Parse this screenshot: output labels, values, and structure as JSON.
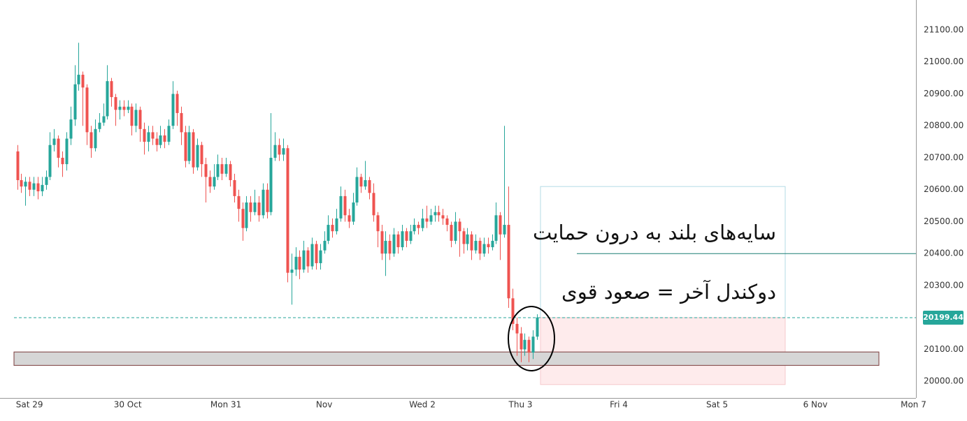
{
  "chart_data": {
    "type": "candlestick",
    "x": [
      -3,
      -2,
      -1,
      0,
      1,
      2,
      3,
      4,
      5,
      6,
      7,
      8,
      9,
      10,
      11,
      12,
      13,
      14,
      15,
      16,
      17,
      18,
      19,
      20,
      21,
      22,
      23,
      24,
      25,
      26,
      27,
      28,
      29,
      30,
      31,
      32,
      33,
      34,
      35,
      36,
      37,
      38,
      39,
      40,
      41,
      42,
      43,
      44,
      45,
      46,
      47,
      48,
      49,
      50,
      51,
      52,
      53,
      54,
      55,
      56,
      57,
      58,
      59,
      60,
      61,
      62,
      63,
      64,
      65,
      66,
      67,
      68,
      69,
      70,
      71,
      72,
      73,
      74,
      75,
      76,
      77,
      78,
      79,
      80,
      81,
      82,
      83,
      84,
      85,
      86,
      87,
      88,
      89,
      90,
      91,
      92,
      93,
      94,
      95,
      96,
      97,
      98,
      99,
      100,
      101,
      102,
      103,
      104,
      105,
      106,
      107,
      108,
      109,
      110,
      111,
      112,
      113,
      114,
      115,
      116,
      117,
      118,
      119,
      120,
      121,
      122,
      123,
      124
    ],
    "open": [
      20720,
      20630,
      20610,
      20625,
      20600,
      20620,
      20595,
      20615,
      20640,
      20740,
      20760,
      20700,
      20680,
      20760,
      20820,
      20930,
      20960,
      20920,
      20780,
      20730,
      20790,
      20810,
      20830,
      20940,
      20890,
      20850,
      20860,
      20850,
      20860,
      20800,
      20850,
      20790,
      20750,
      20780,
      20760,
      20740,
      20770,
      20750,
      20800,
      20900,
      20840,
      20780,
      20690,
      20780,
      20670,
      20740,
      20680,
      20640,
      20610,
      20640,
      20680,
      20650,
      20680,
      20630,
      20580,
      20540,
      20480,
      20560,
      20530,
      20560,
      20520,
      20600,
      20530,
      20700,
      20740,
      20710,
      20730,
      20340,
      20350,
      20390,
      20350,
      20410,
      20360,
      20430,
      20370,
      20410,
      20440,
      20490,
      20470,
      20510,
      20580,
      20520,
      20500,
      20560,
      20640,
      20610,
      20630,
      20590,
      20520,
      20470,
      20400,
      20440,
      20400,
      20460,
      20420,
      20470,
      20440,
      20470,
      20490,
      20480,
      20510,
      20500,
      20520,
      20530,
      20520,
      20510,
      20490,
      20440,
      20500,
      20470,
      20430,
      20460,
      20410,
      20440,
      20400,
      20430,
      20420,
      20440,
      20520,
      20460,
      20490,
      20260,
      20180,
      20150,
      20100,
      20130,
      20090,
      20140
    ],
    "high": [
      20740,
      20650,
      20640,
      20640,
      20640,
      20640,
      20640,
      20660,
      20780,
      20790,
      20770,
      20720,
      20780,
      20860,
      20990,
      21060,
      20970,
      20930,
      20800,
      20820,
      20840,
      20870,
      20990,
      20950,
      20900,
      20880,
      20880,
      20880,
      20870,
      20870,
      20860,
      20810,
      20800,
      20800,
      20780,
      20800,
      20790,
      20820,
      20940,
      20910,
      20860,
      20800,
      20800,
      20790,
      20760,
      20750,
      20700,
      20660,
      20680,
      20710,
      20700,
      20700,
      20690,
      20650,
      20600,
      20560,
      20580,
      20580,
      20600,
      20580,
      20620,
      20620,
      20840,
      20780,
      20760,
      20760,
      20740,
      20400,
      20420,
      20410,
      20440,
      20420,
      20450,
      20440,
      20430,
      20470,
      20520,
      20510,
      20540,
      20610,
      20600,
      20540,
      20590,
      20670,
      20650,
      20690,
      20640,
      20620,
      20530,
      20490,
      20470,
      20460,
      20480,
      20470,
      20490,
      20480,
      20490,
      20510,
      20500,
      20540,
      20550,
      20540,
      20550,
      20550,
      20540,
      20520,
      20500,
      20530,
      20510,
      20480,
      20480,
      20470,
      20460,
      20450,
      20450,
      20450,
      20460,
      20560,
      20530,
      20800,
      20610,
      20290,
      20200,
      20170,
      20150,
      20140,
      20160,
      20210
    ],
    "low": [
      20600,
      20590,
      20550,
      20580,
      20580,
      20570,
      20580,
      20600,
      20630,
      20720,
      20670,
      20640,
      20660,
      20740,
      20800,
      20910,
      20800,
      20740,
      20700,
      20720,
      20780,
      20800,
      20820,
      20860,
      20800,
      20820,
      20830,
      20840,
      20770,
      20780,
      20750,
      20710,
      20720,
      20740,
      20720,
      20730,
      20730,
      20740,
      20790,
      20800,
      20740,
      20670,
      20680,
      20650,
      20660,
      20640,
      20560,
      20590,
      20600,
      20630,
      20630,
      20640,
      20610,
      20560,
      20500,
      20440,
      20470,
      20500,
      20520,
      20500,
      20510,
      20510,
      20520,
      20690,
      20690,
      20690,
      20310,
      20240,
      20330,
      20320,
      20340,
      20340,
      20350,
      20350,
      20350,
      20400,
      20430,
      20450,
      20460,
      20500,
      20500,
      20480,
      20490,
      20550,
      20590,
      20600,
      20570,
      20500,
      20420,
      20380,
      20330,
      20380,
      20390,
      20400,
      20410,
      20420,
      20430,
      20460,
      20460,
      20470,
      20480,
      20490,
      20500,
      20500,
      20490,
      20470,
      20420,
      20430,
      20390,
      20400,
      20410,
      20380,
      20400,
      20380,
      20390,
      20400,
      20410,
      20430,
      20380,
      20450,
      20230,
      20160,
      20080,
      20060,
      20080,
      20060,
      20070,
      20130
    ],
    "close": [
      20630,
      20610,
      20625,
      20600,
      20620,
      20595,
      20615,
      20640,
      20740,
      20760,
      20700,
      20680,
      20760,
      20820,
      20930,
      20960,
      20920,
      20780,
      20730,
      20790,
      20810,
      20830,
      20940,
      20890,
      20850,
      20860,
      20850,
      20860,
      20800,
      20850,
      20790,
      20750,
      20780,
      20760,
      20740,
      20770,
      20750,
      20800,
      20900,
      20840,
      20780,
      20690,
      20780,
      20670,
      20740,
      20680,
      20640,
      20610,
      20640,
      20680,
      20650,
      20680,
      20630,
      20580,
      20540,
      20480,
      20560,
      20530,
      20560,
      20520,
      20600,
      20530,
      20700,
      20740,
      20710,
      20730,
      20340,
      20350,
      20390,
      20350,
      20410,
      20360,
      20430,
      20370,
      20410,
      20440,
      20490,
      20470,
      20510,
      20580,
      20520,
      20500,
      20560,
      20640,
      20610,
      20630,
      20590,
      20520,
      20470,
      20400,
      20440,
      20400,
      20460,
      20420,
      20470,
      20440,
      20470,
      20490,
      20480,
      20510,
      20500,
      20520,
      20530,
      20520,
      20510,
      20490,
      20440,
      20500,
      20470,
      20430,
      20460,
      20410,
      20440,
      20400,
      20430,
      20420,
      20440,
      20520,
      20460,
      20490,
      20260,
      20180,
      20150,
      20100,
      20130,
      20090,
      20140,
      20200
    ],
    "up_color": "#26a69a",
    "down_color": "#ef5350",
    "xlim": [
      -7.2,
      216.6
    ],
    "xticks": [
      {
        "value": 0,
        "label": "Sat 29"
      },
      {
        "value": 24,
        "label": "30 Oct"
      },
      {
        "value": 48,
        "label": "Mon 31"
      },
      {
        "value": 72,
        "label": "Nov"
      },
      {
        "value": 96,
        "label": "Wed 2"
      },
      {
        "value": 120,
        "label": "Thu 3"
      },
      {
        "value": 144,
        "label": "Fri 4"
      },
      {
        "value": 168,
        "label": "Sat 5"
      },
      {
        "value": 192,
        "label": "6 Nov"
      },
      {
        "value": 216,
        "label": "Mon 7"
      }
    ],
    "ylim": [
      19948,
      21194
    ],
    "yticks": [
      {
        "value": 20000,
        "label": "20000.00"
      },
      {
        "value": 20100,
        "label": "20100.00"
      },
      {
        "value": 20200,
        "label": "20200.00"
      },
      {
        "value": 20300,
        "label": "20300.00"
      },
      {
        "value": 20400,
        "label": "20400.00"
      },
      {
        "value": 20500,
        "label": "20500.00"
      },
      {
        "value": 20600,
        "label": "20600.00"
      },
      {
        "value": 20700,
        "label": "20700.00"
      },
      {
        "value": 20800,
        "label": "20800.00"
      },
      {
        "value": 20900,
        "label": "20900.00"
      },
      {
        "value": 21000,
        "label": "21000.00"
      },
      {
        "value": 21100,
        "label": "21100.00"
      }
    ],
    "last_price": 20199.44,
    "support_zone": {
      "low": 20050,
      "high": 20092
    },
    "position": {
      "top": 20610,
      "entry": 20199.44,
      "bottom": 19990
    },
    "hline": 20400,
    "annotations": [
      "سایه‌های بلند به درون حمایت",
      "دوکندل آخر = صعود قوی"
    ]
  }
}
